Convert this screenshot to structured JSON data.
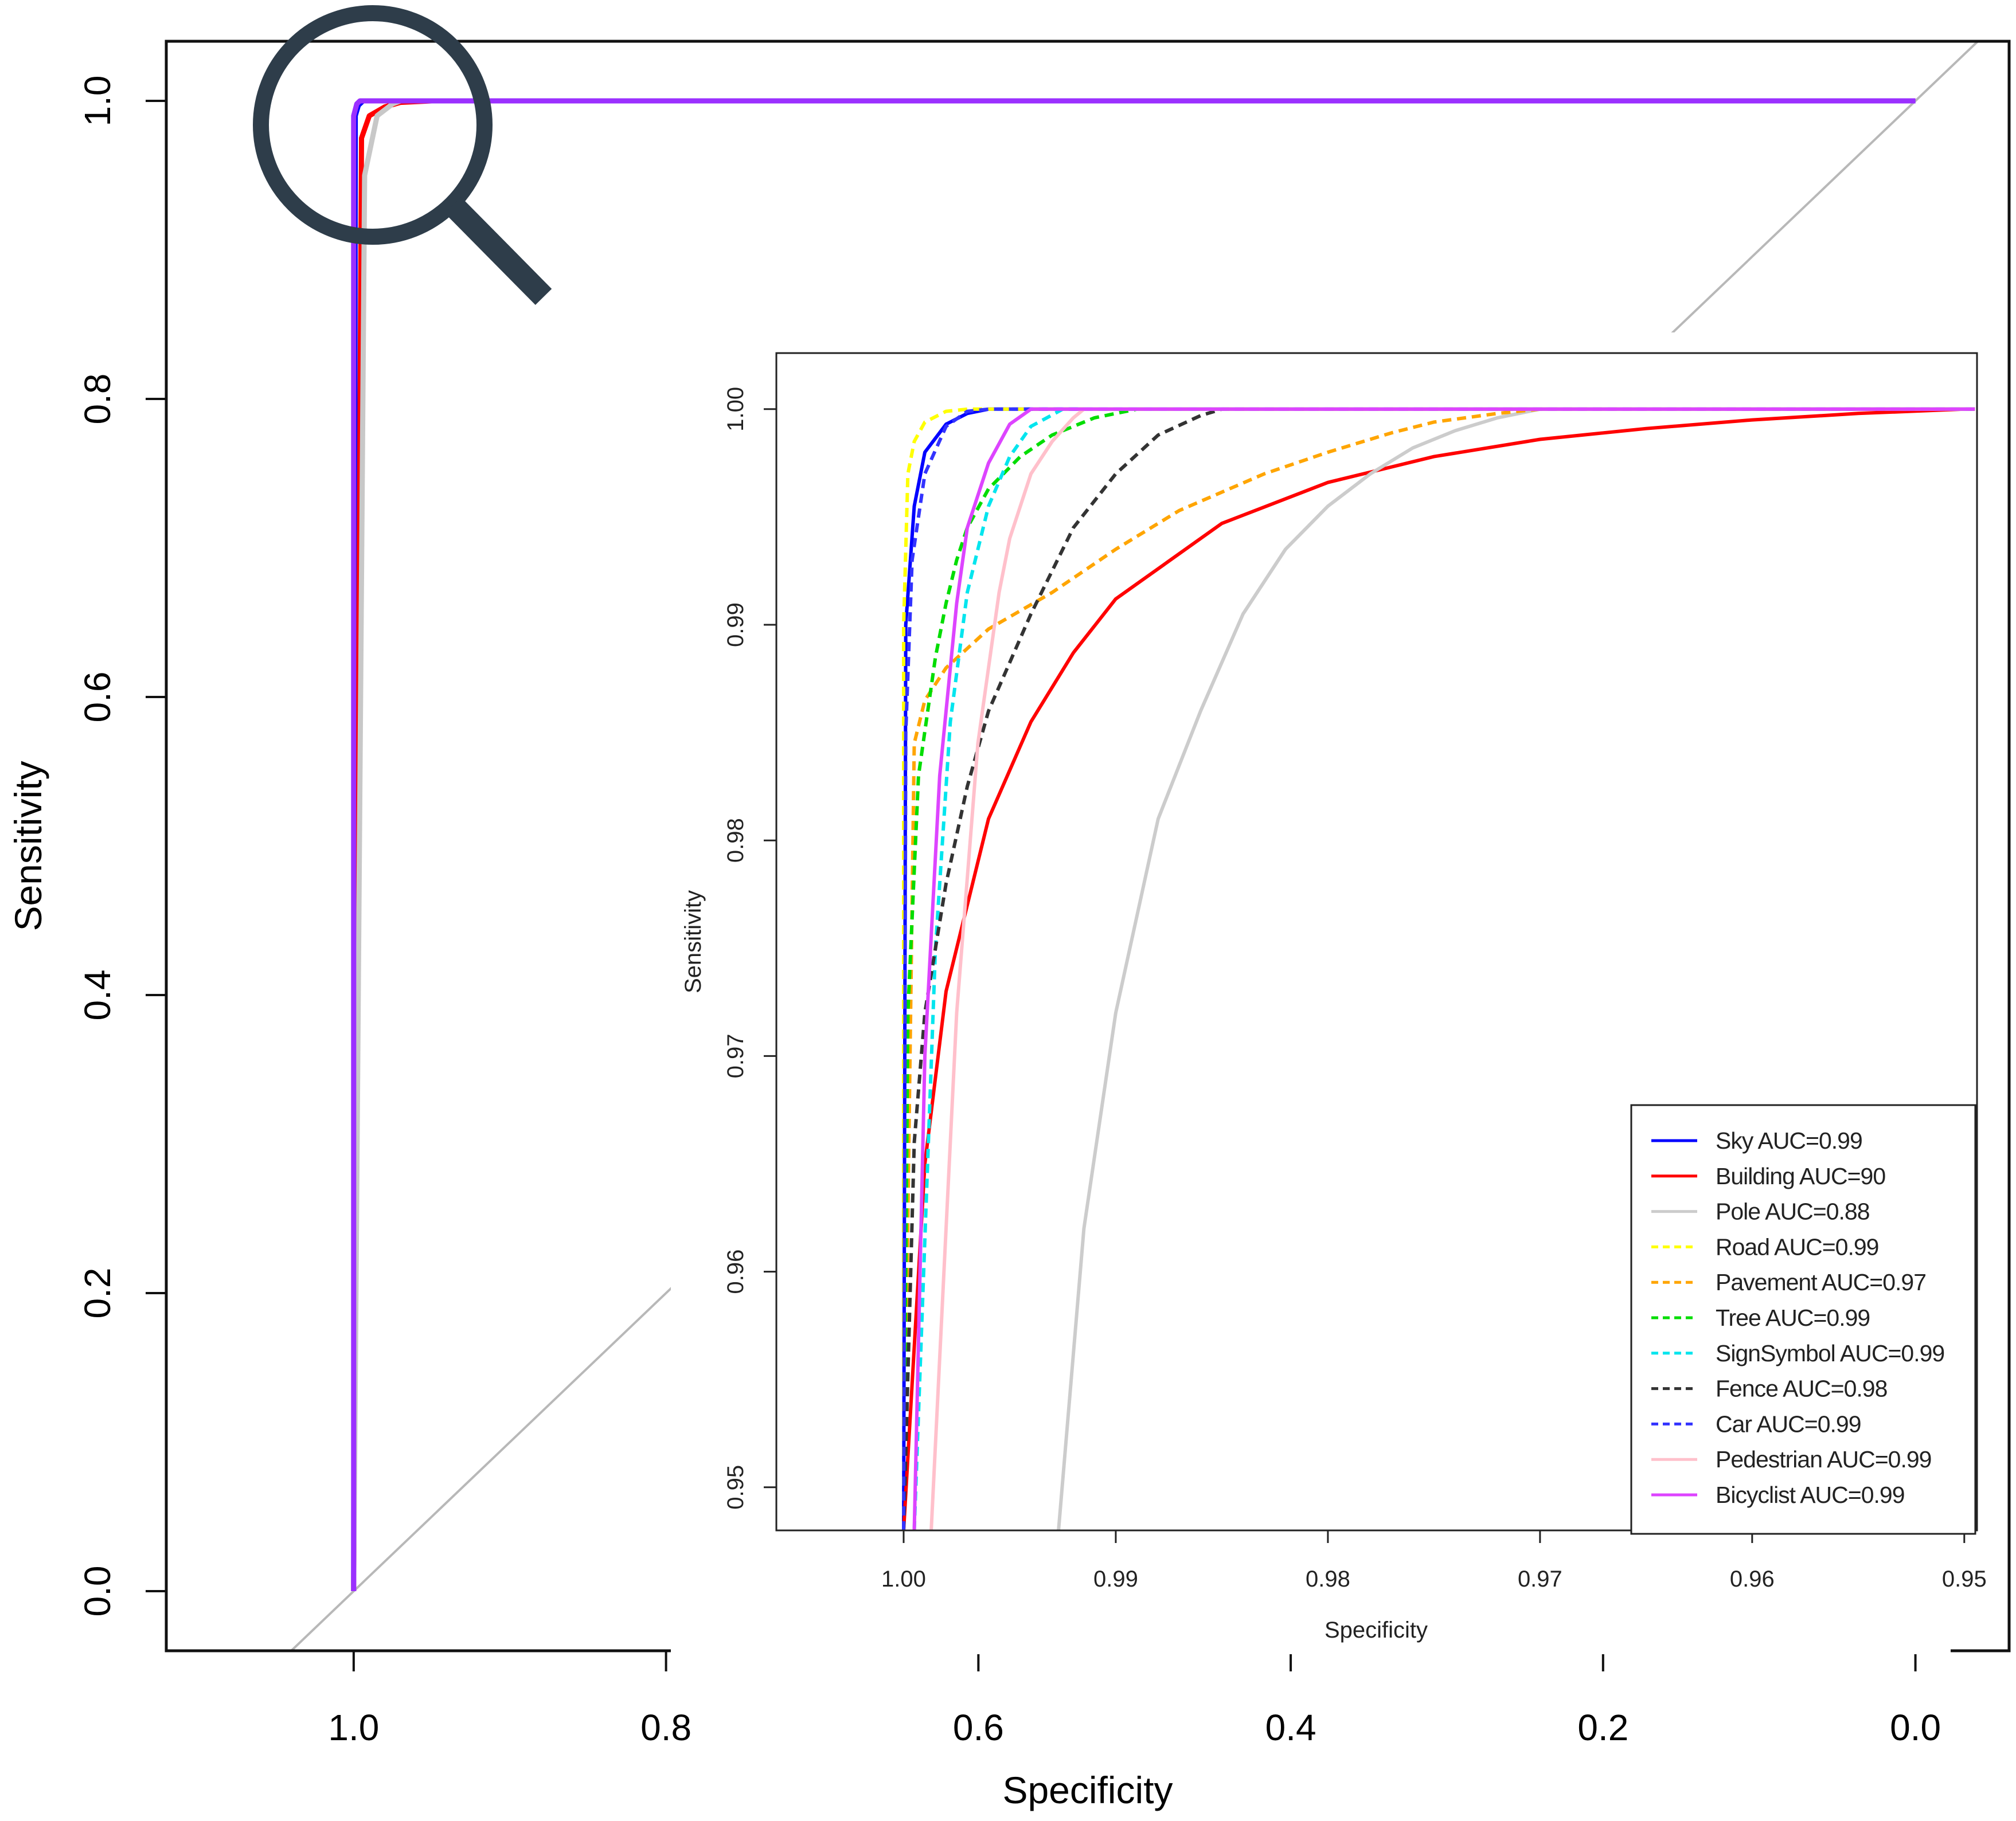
{
  "chart_data": [
    {
      "type": "line",
      "role": "main",
      "xlabel": "Specificity",
      "ylabel": "Sensitivity",
      "xlim": [
        1.12,
        -0.06
      ],
      "ylim": [
        -0.04,
        1.04
      ],
      "x_reversed": true,
      "x_ticks": [
        "1.0",
        "0.8",
        "0.6",
        "0.4",
        "0.2",
        "0.0"
      ],
      "y_ticks": [
        "0.0",
        "0.2",
        "0.4",
        "0.6",
        "0.8",
        "1.0"
      ],
      "reference_line": {
        "x": [
          1.0,
          0.0
        ],
        "y": [
          0.0,
          1.0
        ],
        "color": "#b8b8b8"
      },
      "note": "All ROC curves hug the top-left corner; the magnifier marks the region zoomed in the inset.",
      "series": [
        {
          "name": "Sky AUC=0.99",
          "color": "#0000ff",
          "x": [
            1.0,
            0.999,
            0.997,
            0.994,
            0.0
          ],
          "y": [
            0.0,
            0.99,
            0.997,
            1.0,
            1.0
          ]
        },
        {
          "name": "Building AUC=90",
          "color": "#ff0000",
          "x": [
            1.0,
            0.995,
            0.99,
            0.98,
            0.97,
            0.95
          ],
          "y": [
            0.0,
            0.975,
            0.99,
            0.996,
            0.999,
            1.0
          ]
        },
        {
          "name": "Pole AUC=0.88",
          "color": "#c8c8c8",
          "x": [
            1.0,
            0.993,
            0.985,
            0.975,
            0.97
          ],
          "y": [
            0.0,
            0.95,
            0.99,
            0.998,
            1.0
          ]
        },
        {
          "name": "Bicyclist AUC=0.99",
          "color": "#9b30ff",
          "x": [
            1.0,
            1.0,
            0.998,
            0.996,
            0.0
          ],
          "y": [
            0.0,
            0.99,
            0.998,
            1.0,
            1.0
          ]
        }
      ]
    },
    {
      "type": "line",
      "role": "inset",
      "xlabel": "Specificity",
      "ylabel": "Sensitivity",
      "xlim": [
        1.006,
        0.9494
      ],
      "ylim": [
        0.948,
        1.0026
      ],
      "x_reversed": true,
      "x_ticks": [
        "1.00",
        "0.99",
        "0.98",
        "0.97",
        "0.96",
        "0.95"
      ],
      "y_ticks": [
        "0.95",
        "0.96",
        "0.97",
        "0.98",
        "0.99",
        "1.00"
      ],
      "legend_position": "bottom-right",
      "series": [
        {
          "name": "Sky AUC=0.99",
          "color": "#0000ff",
          "style": "solid",
          "x": [
            1.0,
            0.9999,
            0.9995,
            0.999,
            0.998,
            0.997,
            0.996,
            0.9495
          ],
          "y": [
            0.948,
            0.99,
            0.9955,
            0.998,
            0.9993,
            0.9998,
            1.0,
            1.0
          ]
        },
        {
          "name": "Building AUC=90",
          "color": "#ff0000",
          "style": "solid",
          "x": [
            1.0,
            0.999,
            0.998,
            0.996,
            0.994,
            0.992,
            0.99,
            0.985,
            0.98,
            0.975,
            0.97,
            0.965,
            0.96,
            0.955,
            0.95,
            0.9495
          ],
          "y": [
            0.948,
            0.965,
            0.973,
            0.981,
            0.9855,
            0.9887,
            0.9912,
            0.9947,
            0.9966,
            0.9978,
            0.9986,
            0.9991,
            0.9995,
            0.9998,
            1.0,
            1.0
          ]
        },
        {
          "name": "Pole AUC=0.88",
          "color": "#cccccc",
          "style": "solid",
          "x": [
            0.9927,
            0.9915,
            0.99,
            0.988,
            0.986,
            0.984,
            0.982,
            0.98,
            0.978,
            0.976,
            0.974,
            0.972,
            0.97,
            0.9495
          ],
          "y": [
            0.948,
            0.962,
            0.972,
            0.981,
            0.986,
            0.9905,
            0.9935,
            0.9955,
            0.997,
            0.9982,
            0.999,
            0.9996,
            1.0,
            1.0
          ]
        },
        {
          "name": "Road AUC=0.99",
          "color": "#ffff00",
          "style": "dashed",
          "x": [
            1.0,
            1.0,
            0.9998,
            0.9995,
            0.999,
            0.998,
            0.997,
            0.9495
          ],
          "y": [
            0.948,
            0.99,
            0.997,
            0.9985,
            0.9994,
            0.9999,
            1.0,
            1.0
          ]
        },
        {
          "name": "Pavement AUC=0.97",
          "color": "#ffa500",
          "style": "dashed",
          "x": [
            1.0,
            0.9995,
            0.999,
            0.998,
            0.996,
            0.993,
            0.99,
            0.987,
            0.983,
            0.98,
            0.977,
            0.975,
            0.972,
            0.97,
            0.9495
          ],
          "y": [
            0.948,
            0.9845,
            0.9865,
            0.988,
            0.9898,
            0.9915,
            0.9935,
            0.9953,
            0.997,
            0.998,
            0.9989,
            0.9994,
            0.9998,
            1.0,
            1.0
          ]
        },
        {
          "name": "Tree AUC=0.99",
          "color": "#00dd00",
          "style": "dashed",
          "x": [
            1.0,
            0.9998,
            0.9993,
            0.9985,
            0.998,
            0.9975,
            0.997,
            0.996,
            0.9945,
            0.993,
            0.991,
            0.989,
            0.9495
          ],
          "y": [
            0.948,
            0.972,
            0.983,
            0.9885,
            0.991,
            0.993,
            0.9945,
            0.9963,
            0.9978,
            0.9988,
            0.9996,
            1.0,
            1.0
          ]
        },
        {
          "name": "SignSymbol AUC=0.99",
          "color": "#00e5ee",
          "style": "dashed",
          "x": [
            0.9995,
            0.9985,
            0.9978,
            0.997,
            0.996,
            0.995,
            0.994,
            0.9925,
            0.9495
          ],
          "y": [
            0.948,
            0.975,
            0.9855,
            0.9915,
            0.9955,
            0.9978,
            0.9992,
            1.0,
            1.0
          ]
        },
        {
          "name": "Fence AUC=0.98",
          "color": "#333333",
          "style": "dashed",
          "x": [
            1.0,
            0.9995,
            0.999,
            0.998,
            0.997,
            0.996,
            0.994,
            0.992,
            0.99,
            0.988,
            0.986,
            0.985,
            0.9495
          ],
          "y": [
            0.948,
            0.966,
            0.972,
            0.978,
            0.9825,
            0.986,
            0.9905,
            0.9945,
            0.997,
            0.9988,
            0.9997,
            1.0,
            1.0
          ]
        },
        {
          "name": "Car AUC=0.99",
          "color": "#3333ff",
          "style": "dashed",
          "x": [
            1.0,
            0.9999,
            0.9996,
            0.999,
            0.998,
            0.997,
            0.996,
            0.9495
          ],
          "y": [
            0.948,
            0.985,
            0.993,
            0.997,
            0.9992,
            0.9999,
            1.0,
            1.0
          ]
        },
        {
          "name": "Pedestrian AUC=0.99",
          "color": "#ffc0cb",
          "style": "solid",
          "x": [
            0.9987,
            0.9975,
            0.9965,
            0.9955,
            0.995,
            0.994,
            0.993,
            0.992,
            0.9915,
            0.9495
          ],
          "y": [
            0.948,
            0.972,
            0.9845,
            0.9915,
            0.994,
            0.997,
            0.9985,
            0.9996,
            1.0,
            1.0
          ]
        },
        {
          "name": "Bicyclist AUC=0.99",
          "color": "#dd44ff",
          "style": "solid",
          "x": [
            0.9995,
            0.999,
            0.9983,
            0.9975,
            0.997,
            0.996,
            0.995,
            0.994,
            0.9495
          ],
          "y": [
            0.948,
            0.97,
            0.983,
            0.991,
            0.9945,
            0.9975,
            0.9993,
            1.0,
            1.0
          ]
        }
      ]
    }
  ]
}
